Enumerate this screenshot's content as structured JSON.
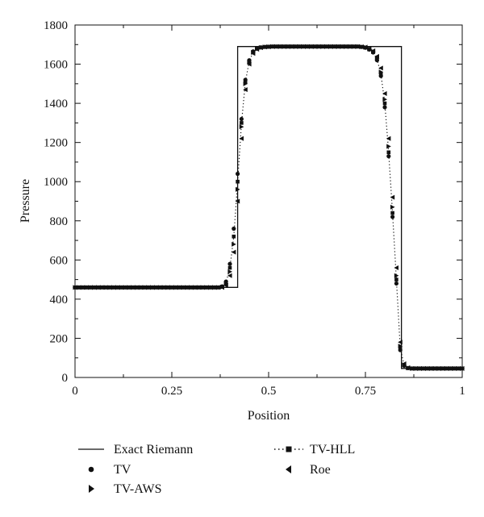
{
  "chart_data": {
    "type": "line",
    "title": "",
    "xlabel": "Position",
    "ylabel": "Pressure",
    "xlim": [
      0,
      1
    ],
    "ylim": [
      0,
      1800
    ],
    "x_ticks": [
      0,
      0.25,
      0.5,
      0.75,
      1
    ],
    "x_tick_labels": [
      "0",
      "0.25",
      "0.5",
      "0.75",
      "1"
    ],
    "y_ticks": [
      0,
      200,
      400,
      600,
      800,
      1000,
      1200,
      1400,
      1600,
      1800
    ],
    "y_tick_labels": [
      "0",
      "200",
      "400",
      "600",
      "800",
      "1000",
      "1200",
      "1400",
      "1600",
      "1800"
    ],
    "grid": false,
    "legend_position": "bottom",
    "legend": [
      "Exact Riemann",
      "TV",
      "TV-AWS",
      "TV-HLL",
      "Roe"
    ],
    "series": [
      {
        "name": "Exact Riemann",
        "style": "solid-line",
        "x": [
          0,
          0.42,
          0.42,
          0.843,
          0.843,
          1
        ],
        "y": [
          460,
          460,
          1690,
          1690,
          46,
          46
        ]
      },
      {
        "name": "TV",
        "style": "circle",
        "x": [
          0,
          0.01,
          0.02,
          0.03,
          0.04,
          0.05,
          0.06,
          0.07,
          0.08,
          0.09,
          0.1,
          0.11,
          0.12,
          0.13,
          0.14,
          0.15,
          0.16,
          0.17,
          0.18,
          0.19,
          0.2,
          0.21,
          0.22,
          0.23,
          0.24,
          0.25,
          0.26,
          0.27,
          0.28,
          0.29,
          0.3,
          0.31,
          0.32,
          0.33,
          0.34,
          0.35,
          0.36,
          0.37,
          0.38,
          0.39,
          0.4,
          0.41,
          0.42,
          0.43,
          0.44,
          0.45,
          0.46,
          0.47,
          0.48,
          0.49,
          0.5,
          0.51,
          0.52,
          0.53,
          0.54,
          0.55,
          0.56,
          0.57,
          0.58,
          0.59,
          0.6,
          0.61,
          0.62,
          0.63,
          0.64,
          0.65,
          0.66,
          0.67,
          0.68,
          0.69,
          0.7,
          0.71,
          0.72,
          0.73,
          0.74,
          0.75,
          0.76,
          0.77,
          0.78,
          0.79,
          0.8,
          0.81,
          0.82,
          0.83,
          0.84,
          0.85,
          0.86,
          0.87,
          0.88,
          0.89,
          0.9,
          0.91,
          0.92,
          0.93,
          0.94,
          0.95,
          0.96,
          0.97,
          0.98,
          0.99,
          1
        ],
        "y": [
          460,
          460,
          460,
          460,
          460,
          460,
          460,
          460,
          460,
          460,
          460,
          460,
          460,
          460,
          460,
          460,
          460,
          460,
          460,
          460,
          460,
          460,
          460,
          460,
          460,
          460,
          460,
          460,
          460,
          460,
          460,
          460,
          460,
          460,
          460,
          460,
          460,
          460,
          465,
          490,
          580,
          760,
          1040,
          1320,
          1520,
          1620,
          1665,
          1680,
          1686,
          1688,
          1689,
          1690,
          1690,
          1690,
          1690,
          1690,
          1690,
          1690,
          1690,
          1690,
          1690,
          1690,
          1690,
          1690,
          1690,
          1690,
          1690,
          1690,
          1690,
          1690,
          1690,
          1690,
          1690,
          1690,
          1688,
          1684,
          1675,
          1660,
          1620,
          1540,
          1380,
          1130,
          820,
          480,
          140,
          60,
          48,
          46,
          46,
          46,
          46,
          46,
          46,
          46,
          46,
          46,
          46,
          46,
          46,
          46,
          46
        ]
      },
      {
        "name": "TV-AWS",
        "style": "triangle-right",
        "x": [
          0,
          0.01,
          0.02,
          0.03,
          0.04,
          0.05,
          0.06,
          0.07,
          0.08,
          0.09,
          0.1,
          0.11,
          0.12,
          0.13,
          0.14,
          0.15,
          0.16,
          0.17,
          0.18,
          0.19,
          0.2,
          0.21,
          0.22,
          0.23,
          0.24,
          0.25,
          0.26,
          0.27,
          0.28,
          0.29,
          0.3,
          0.31,
          0.32,
          0.33,
          0.34,
          0.35,
          0.36,
          0.37,
          0.38,
          0.39,
          0.4,
          0.41,
          0.42,
          0.43,
          0.44,
          0.45,
          0.46,
          0.47,
          0.48,
          0.49,
          0.5,
          0.51,
          0.52,
          0.53,
          0.54,
          0.55,
          0.56,
          0.57,
          0.58,
          0.59,
          0.6,
          0.61,
          0.62,
          0.63,
          0.64,
          0.65,
          0.66,
          0.67,
          0.68,
          0.69,
          0.7,
          0.71,
          0.72,
          0.73,
          0.74,
          0.75,
          0.76,
          0.77,
          0.78,
          0.79,
          0.8,
          0.81,
          0.82,
          0.83,
          0.84,
          0.85,
          0.86,
          0.87,
          0.88,
          0.89,
          0.9,
          0.91,
          0.92,
          0.93,
          0.94,
          0.95,
          0.96,
          0.97,
          0.98,
          0.99,
          1
        ],
        "y": [
          460,
          460,
          460,
          460,
          460,
          460,
          460,
          460,
          460,
          460,
          460,
          460,
          460,
          460,
          460,
          460,
          460,
          460,
          460,
          460,
          460,
          460,
          460,
          460,
          460,
          460,
          460,
          460,
          460,
          460,
          460,
          460,
          460,
          460,
          460,
          460,
          460,
          460,
          462,
          480,
          540,
          680,
          960,
          1280,
          1500,
          1610,
          1660,
          1678,
          1685,
          1688,
          1689,
          1690,
          1690,
          1690,
          1690,
          1690,
          1690,
          1690,
          1690,
          1690,
          1690,
          1690,
          1690,
          1690,
          1690,
          1690,
          1690,
          1690,
          1690,
          1690,
          1690,
          1690,
          1690,
          1690,
          1689,
          1686,
          1678,
          1665,
          1630,
          1560,
          1420,
          1180,
          870,
          520,
          160,
          65,
          49,
          46,
          46,
          46,
          46,
          46,
          46,
          46,
          46,
          46,
          46,
          46,
          46,
          46,
          46
        ]
      },
      {
        "name": "TV-HLL",
        "style": "dotted-square",
        "x": [
          0,
          0.01,
          0.02,
          0.03,
          0.04,
          0.05,
          0.06,
          0.07,
          0.08,
          0.09,
          0.1,
          0.11,
          0.12,
          0.13,
          0.14,
          0.15,
          0.16,
          0.17,
          0.18,
          0.19,
          0.2,
          0.21,
          0.22,
          0.23,
          0.24,
          0.25,
          0.26,
          0.27,
          0.28,
          0.29,
          0.3,
          0.31,
          0.32,
          0.33,
          0.34,
          0.35,
          0.36,
          0.37,
          0.38,
          0.39,
          0.4,
          0.41,
          0.42,
          0.43,
          0.44,
          0.45,
          0.46,
          0.47,
          0.48,
          0.49,
          0.5,
          0.51,
          0.52,
          0.53,
          0.54,
          0.55,
          0.56,
          0.57,
          0.58,
          0.59,
          0.6,
          0.61,
          0.62,
          0.63,
          0.64,
          0.65,
          0.66,
          0.67,
          0.68,
          0.69,
          0.7,
          0.71,
          0.72,
          0.73,
          0.74,
          0.75,
          0.76,
          0.77,
          0.78,
          0.79,
          0.8,
          0.81,
          0.82,
          0.83,
          0.84,
          0.85,
          0.86,
          0.87,
          0.88,
          0.89,
          0.9,
          0.91,
          0.92,
          0.93,
          0.94,
          0.95,
          0.96,
          0.97,
          0.98,
          0.99,
          1
        ],
        "y": [
          460,
          460,
          460,
          460,
          460,
          460,
          460,
          460,
          460,
          460,
          460,
          460,
          460,
          460,
          460,
          460,
          460,
          460,
          460,
          460,
          460,
          460,
          460,
          460,
          460,
          460,
          460,
          460,
          460,
          460,
          460,
          460,
          460,
          460,
          460,
          460,
          460,
          460,
          463,
          485,
          560,
          720,
          1000,
          1300,
          1510,
          1615,
          1662,
          1679,
          1685,
          1688,
          1689,
          1690,
          1690,
          1690,
          1690,
          1690,
          1690,
          1690,
          1690,
          1690,
          1690,
          1690,
          1690,
          1690,
          1690,
          1690,
          1690,
          1690,
          1690,
          1690,
          1690,
          1690,
          1690,
          1690,
          1688,
          1685,
          1676,
          1662,
          1625,
          1550,
          1400,
          1150,
          840,
          500,
          150,
          62,
          48,
          46,
          46,
          46,
          46,
          46,
          46,
          46,
          46,
          46,
          46,
          46,
          46,
          46,
          46
        ]
      },
      {
        "name": "Roe",
        "style": "triangle-left",
        "x": [
          0,
          0.01,
          0.02,
          0.03,
          0.04,
          0.05,
          0.06,
          0.07,
          0.08,
          0.09,
          0.1,
          0.11,
          0.12,
          0.13,
          0.14,
          0.15,
          0.16,
          0.17,
          0.18,
          0.19,
          0.2,
          0.21,
          0.22,
          0.23,
          0.24,
          0.25,
          0.26,
          0.27,
          0.28,
          0.29,
          0.3,
          0.31,
          0.32,
          0.33,
          0.34,
          0.35,
          0.36,
          0.37,
          0.38,
          0.39,
          0.4,
          0.41,
          0.42,
          0.43,
          0.44,
          0.45,
          0.46,
          0.47,
          0.48,
          0.49,
          0.5,
          0.51,
          0.52,
          0.53,
          0.54,
          0.55,
          0.56,
          0.57,
          0.58,
          0.59,
          0.6,
          0.61,
          0.62,
          0.63,
          0.64,
          0.65,
          0.66,
          0.67,
          0.68,
          0.69,
          0.7,
          0.71,
          0.72,
          0.73,
          0.74,
          0.75,
          0.76,
          0.77,
          0.78,
          0.79,
          0.8,
          0.81,
          0.82,
          0.83,
          0.84,
          0.85,
          0.86,
          0.87,
          0.88,
          0.89,
          0.9,
          0.91,
          0.92,
          0.93,
          0.94,
          0.95,
          0.96,
          0.97,
          0.98,
          0.99,
          1
        ],
        "y": [
          460,
          460,
          460,
          460,
          460,
          460,
          460,
          460,
          460,
          460,
          460,
          460,
          460,
          460,
          460,
          460,
          460,
          460,
          460,
          460,
          460,
          460,
          460,
          460,
          460,
          460,
          460,
          460,
          460,
          460,
          460,
          460,
          460,
          460,
          460,
          460,
          460,
          460,
          460,
          470,
          520,
          640,
          900,
          1220,
          1470,
          1600,
          1655,
          1676,
          1684,
          1688,
          1689,
          1690,
          1690,
          1690,
          1690,
          1690,
          1690,
          1690,
          1690,
          1690,
          1690,
          1690,
          1690,
          1690,
          1690,
          1690,
          1690,
          1690,
          1690,
          1690,
          1690,
          1690,
          1690,
          1690,
          1689,
          1687,
          1680,
          1668,
          1640,
          1580,
          1450,
          1220,
          920,
          560,
          180,
          70,
          50,
          46,
          46,
          46,
          46,
          46,
          46,
          46,
          46,
          46,
          46,
          46,
          46,
          46,
          46
        ]
      }
    ]
  }
}
